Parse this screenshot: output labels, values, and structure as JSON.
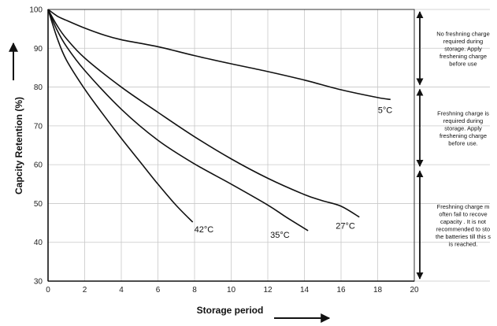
{
  "chart_data": {
    "type": "line",
    "title": "",
    "xlabel": "Storage period",
    "ylabel": "Capcity Retention (%)",
    "xlim": [
      0,
      20
    ],
    "ylim": [
      30,
      100
    ],
    "xticks": [
      "0",
      "2",
      "4",
      "6",
      "8",
      "10",
      "12",
      "14",
      "16",
      "18",
      "20"
    ],
    "yticks": [
      "30",
      "40",
      "50",
      "60",
      "70",
      "80",
      "90",
      "100"
    ],
    "grid": true,
    "series": [
      {
        "name": "5°C",
        "x": [
          0,
          0.5,
          1,
          2,
          3,
          4,
          6,
          8,
          10,
          12,
          14,
          16,
          18,
          18.7
        ],
        "y": [
          100,
          98.3,
          97.2,
          95.2,
          93.5,
          92.2,
          90.4,
          88.1,
          86.0,
          84.0,
          81.8,
          79.3,
          77.3,
          76.8
        ]
      },
      {
        "name": "27°C",
        "x": [
          0,
          0.5,
          1,
          2,
          4,
          6,
          8,
          10,
          12,
          14,
          15,
          16,
          17
        ],
        "y": [
          100,
          95.8,
          92.5,
          87.5,
          80.0,
          73.5,
          67.2,
          61.5,
          56.5,
          52.3,
          50.7,
          49.3,
          46.5
        ]
      },
      {
        "name": "35°C",
        "x": [
          0,
          0.5,
          1,
          2,
          4,
          6,
          8,
          10,
          12,
          13,
          14.2
        ],
        "y": [
          100,
          94.6,
          90.5,
          84.3,
          74.3,
          66.3,
          60.2,
          55.0,
          49.6,
          46.5,
          43.0
        ]
      },
      {
        "name": "42°C",
        "x": [
          0,
          0.5,
          1,
          2,
          3,
          4,
          5,
          6,
          7,
          7.9
        ],
        "y": [
          100,
          92.6,
          87.0,
          79.5,
          73.0,
          66.8,
          60.9,
          55.0,
          49.5,
          45.2
        ]
      }
    ],
    "annotations": [
      {
        "range": [
          80,
          100
        ],
        "lines": [
          "No freshning charge",
          "required during",
          "storage. Apply",
          "freshening charge",
          "before use"
        ]
      },
      {
        "range": [
          59,
          80
        ],
        "lines": [
          "Freshning charge is",
          "required during",
          "storage. Apply",
          "freshening charge",
          "before use."
        ]
      },
      {
        "range": [
          30,
          59
        ],
        "lines": [
          "Freshning charge m",
          "often fail to recove",
          "capacity . It is not",
          "recommended to sto",
          "the batteries till this s",
          "is reached."
        ]
      }
    ]
  }
}
